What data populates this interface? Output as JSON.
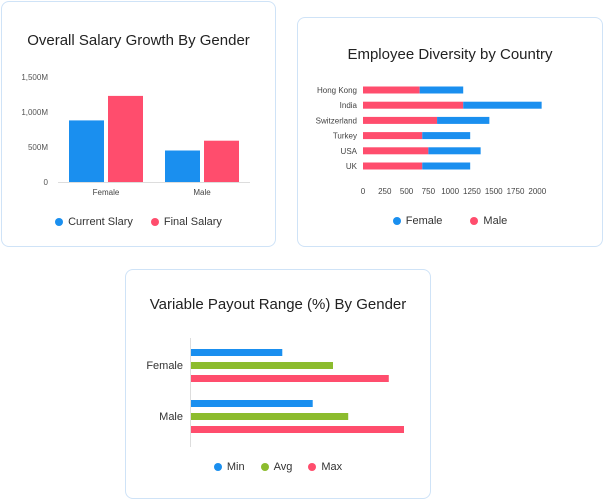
{
  "colors": {
    "blue": "#1a8fef",
    "pink": "#ff4d6d",
    "green": "#8cbc2e",
    "axis": "#dddddd"
  },
  "chart_data": [
    {
      "type": "bar",
      "title": "Overall Salary Growth By Gender",
      "categories": [
        "Female",
        "Male"
      ],
      "series": [
        {
          "name": "Current Slary",
          "values": [
            880,
            450
          ]
        },
        {
          "name": "Final Salary",
          "values": [
            1230,
            590
          ]
        }
      ],
      "yticks": [
        0,
        500,
        1000,
        1500
      ],
      "ytick_labels": [
        "0",
        "500M",
        "1,000M",
        "1,500M"
      ],
      "ylim": [
        0,
        1500
      ],
      "xlabel": "",
      "ylabel": "",
      "legend": "bottom"
    },
    {
      "type": "bar",
      "orientation": "horizontal",
      "stacked": true,
      "title": "Employee Diversity by Country",
      "categories": [
        "Hong Kong",
        "India",
        "Switzerland",
        "Turkey",
        "USA",
        "UK"
      ],
      "series": [
        {
          "name": "Female",
          "values": [
            500,
            900,
            600,
            550,
            600,
            550
          ]
        },
        {
          "name": "Male",
          "values": [
            650,
            1150,
            850,
            680,
            750,
            680
          ]
        }
      ],
      "xticks": [
        0,
        250,
        500,
        750,
        1000,
        1250,
        1500,
        1750,
        2000
      ],
      "xlim": [
        0,
        2100
      ],
      "legend": "bottom"
    },
    {
      "type": "bar",
      "orientation": "horizontal",
      "title": "Variable Payout Range (%) By Gender",
      "categories": [
        "Female",
        "Male"
      ],
      "series": [
        {
          "name": "Min",
          "values": [
            18,
            24
          ]
        },
        {
          "name": "Avg",
          "values": [
            28,
            31
          ]
        },
        {
          "name": "Max",
          "values": [
            39,
            42
          ]
        }
      ],
      "xlim": [
        0,
        42
      ],
      "legend": "bottom"
    }
  ]
}
